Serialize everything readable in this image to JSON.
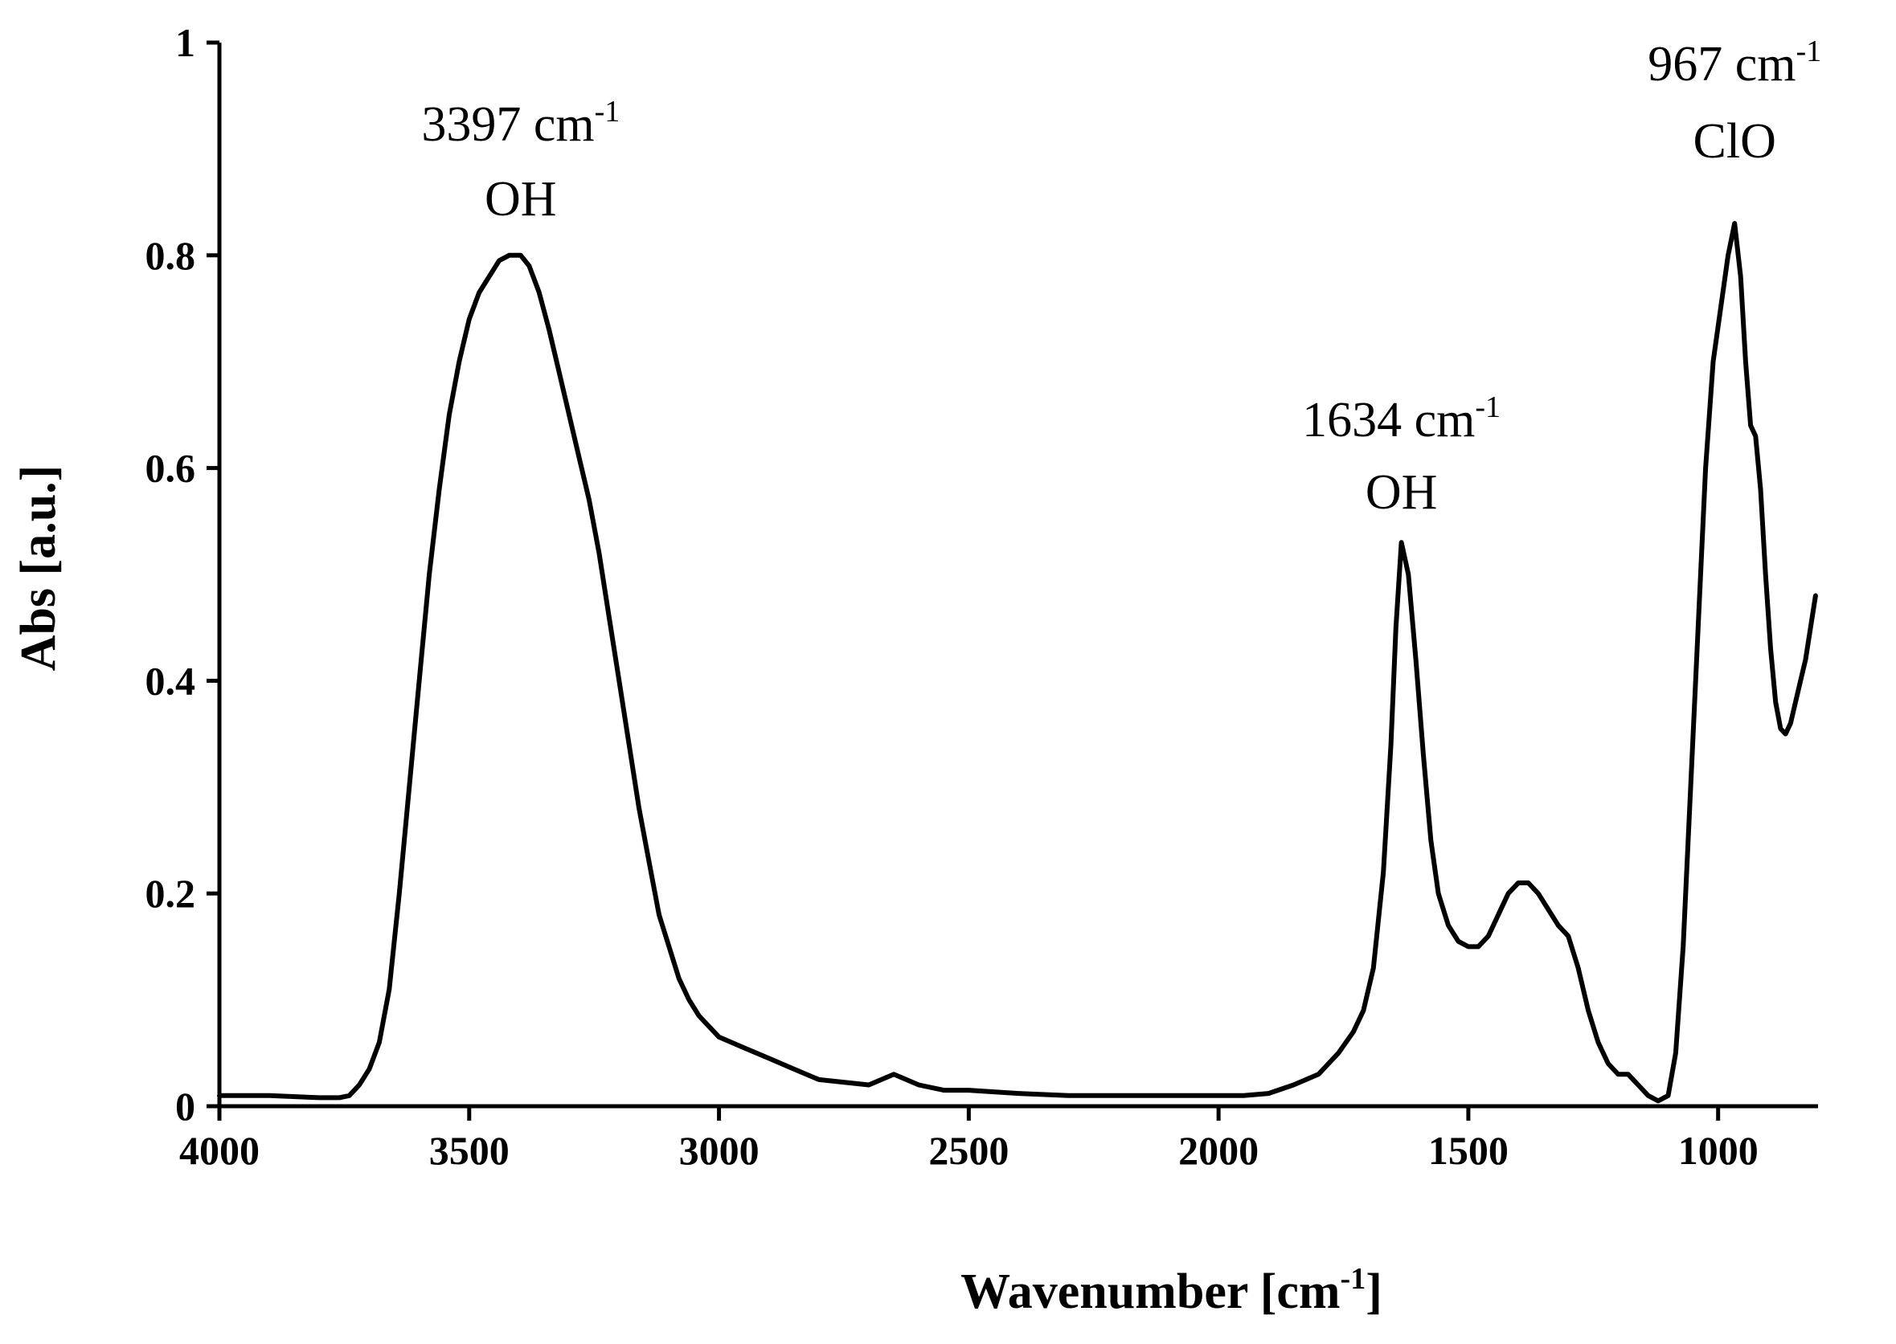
{
  "chart_data": {
    "type": "line",
    "title": "",
    "xlabel": "Wavenumber [cm",
    "xlabel_sup": "-1",
    "xlabel_end": "]",
    "ylabel": "Abs [a.u.]",
    "xlim": [
      4000,
      800
    ],
    "ylim": [
      0,
      1
    ],
    "x_reversed": true,
    "grid": false,
    "x_ticks": [
      4000,
      3500,
      3000,
      2500,
      2000,
      1500,
      1000
    ],
    "x_tick_labels": [
      "4000",
      "3500",
      "3000",
      "2500",
      "2000",
      "1500",
      "1000"
    ],
    "y_ticks": [
      0,
      0.2,
      0.4,
      0.6,
      0.8,
      1
    ],
    "y_tick_labels": [
      "0",
      "0.2",
      "0.4",
      "0.6",
      "0.8",
      "1"
    ],
    "series": [
      {
        "color": "#000000",
        "x": [
          4000,
          3900,
          3800,
          3760,
          3740,
          3720,
          3700,
          3680,
          3660,
          3640,
          3620,
          3600,
          3580,
          3560,
          3540,
          3520,
          3500,
          3480,
          3460,
          3440,
          3420,
          3397,
          3380,
          3360,
          3340,
          3320,
          3300,
          3280,
          3260,
          3240,
          3220,
          3200,
          3180,
          3160,
          3140,
          3120,
          3100,
          3080,
          3060,
          3040,
          3020,
          3000,
          2950,
          2900,
          2850,
          2800,
          2700,
          2650,
          2600,
          2550,
          2500,
          2400,
          2300,
          2200,
          2100,
          2000,
          1950,
          1900,
          1850,
          1800,
          1760,
          1730,
          1710,
          1690,
          1670,
          1655,
          1645,
          1634,
          1620,
          1605,
          1590,
          1575,
          1560,
          1540,
          1520,
          1500,
          1480,
          1460,
          1440,
          1420,
          1400,
          1380,
          1360,
          1340,
          1320,
          1300,
          1280,
          1260,
          1240,
          1220,
          1200,
          1180,
          1160,
          1140,
          1120,
          1100,
          1085,
          1070,
          1055,
          1040,
          1025,
          1010,
          995,
          980,
          967,
          955,
          945,
          935,
          925,
          915,
          905,
          895,
          885,
          875,
          865,
          855,
          845,
          835,
          825,
          815,
          805
        ],
        "y": [
          0.01,
          0.01,
          0.008,
          0.008,
          0.01,
          0.02,
          0.035,
          0.06,
          0.11,
          0.2,
          0.3,
          0.4,
          0.5,
          0.58,
          0.65,
          0.7,
          0.74,
          0.765,
          0.78,
          0.795,
          0.8,
          0.8,
          0.79,
          0.765,
          0.73,
          0.69,
          0.65,
          0.61,
          0.57,
          0.52,
          0.46,
          0.4,
          0.34,
          0.28,
          0.23,
          0.18,
          0.15,
          0.12,
          0.1,
          0.085,
          0.075,
          0.065,
          0.055,
          0.045,
          0.035,
          0.025,
          0.02,
          0.03,
          0.02,
          0.015,
          0.015,
          0.012,
          0.01,
          0.01,
          0.01,
          0.01,
          0.01,
          0.012,
          0.02,
          0.03,
          0.05,
          0.07,
          0.09,
          0.13,
          0.22,
          0.34,
          0.45,
          0.53,
          0.5,
          0.42,
          0.33,
          0.25,
          0.2,
          0.17,
          0.155,
          0.15,
          0.15,
          0.16,
          0.18,
          0.2,
          0.21,
          0.21,
          0.2,
          0.185,
          0.17,
          0.16,
          0.13,
          0.09,
          0.06,
          0.04,
          0.03,
          0.03,
          0.02,
          0.01,
          0.005,
          0.01,
          0.05,
          0.15,
          0.3,
          0.45,
          0.6,
          0.7,
          0.75,
          0.8,
          0.83,
          0.78,
          0.7,
          0.64,
          0.63,
          0.58,
          0.5,
          0.43,
          0.38,
          0.355,
          0.35,
          0.36,
          0.38,
          0.4,
          0.42,
          0.45,
          0.48
        ]
      }
    ],
    "annotations": [
      {
        "x": 3397,
        "label": "3397 cm",
        "sup": "-1",
        "group": "OH"
      },
      {
        "x": 1634,
        "label": "1634 cm",
        "sup": "-1",
        "group": "OH"
      },
      {
        "x": 967,
        "label": "967 cm",
        "sup": "-1",
        "group": "ClO"
      }
    ]
  }
}
